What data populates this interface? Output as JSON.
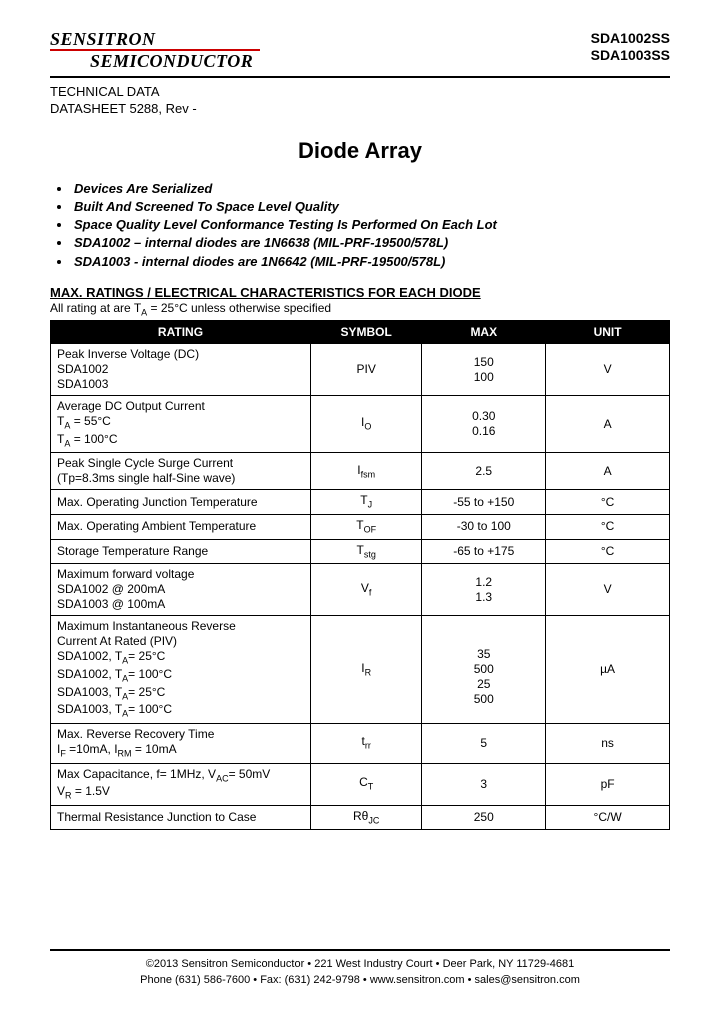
{
  "header": {
    "logo_top": "SENSITRON",
    "logo_bottom": "SEMICONDUCTOR",
    "part1": "SDA1002SS",
    "part2": "SDA1003SS",
    "red_line_color": "#cc0000"
  },
  "tech_data": {
    "line1": "TECHNICAL DATA",
    "line2": "DATASHEET 5288, Rev -"
  },
  "title": "Diode Array",
  "bullets": [
    {
      "text": "Devices Are Serialized",
      "style": "bold-italic"
    },
    {
      "text": "Built And Screened To Space Level Quality",
      "style": "bold-italic"
    },
    {
      "text": "Space Quality Level Conformance Testing Is Performed On Each Lot",
      "style": "bold-italic"
    },
    {
      "text": "SDA1002 – internal diodes are 1N6638 (MIL-PRF-19500/578L)",
      "style": "bold-italic"
    },
    {
      "text": "SDA1003 -  internal diodes are 1N6642 (MIL-PRF-19500/578L)",
      "style": "bold-italic"
    }
  ],
  "ratings_section": {
    "heading": "MAX. RATINGS / ELECTRICAL CHARACTERISTICS FOR EACH DIODE",
    "subheading_pre": "All rating at are T",
    "subheading_sub": "A",
    "subheading_post": " = 25°C unless otherwise specified"
  },
  "table": {
    "columns": [
      "RATING",
      "SYMBOL",
      "MAX",
      "UNIT"
    ],
    "col_widths": [
      "42%",
      "18%",
      "20%",
      "20%"
    ],
    "header_bg": "#000000",
    "header_fg": "#ffffff",
    "rows": [
      {
        "rating": "Peak Inverse Voltage (DC)<br>SDA1002<br>SDA1003",
        "symbol": "PIV",
        "max": "150<br>100",
        "unit": "V"
      },
      {
        "rating": "Average DC Output Current<br>T<span class=\"sub\">A</span> = 55°C<br>T<span class=\"sub\">A</span> = 100°C",
        "symbol": "I<span class=\"sub\">O</span>",
        "max": "0.30<br>0.16",
        "unit": "A"
      },
      {
        "rating": "Peak Single Cycle Surge Current<br>(Tp=8.3ms single half-Sine wave)",
        "symbol": "I<span class=\"sub\">fsm</span>",
        "max": "2.5",
        "unit": "A"
      },
      {
        "rating": "Max. Operating Junction Temperature",
        "symbol": "T<span class=\"sub\">J</span>",
        "max": "-55 to +150",
        "unit": "°C"
      },
      {
        "rating": "Max. Operating Ambient Temperature",
        "symbol": "T<span class=\"sub\">OF</span>",
        "max": "-30 to 100",
        "unit": "°C"
      },
      {
        "rating": "Storage Temperature Range",
        "symbol": "T<span class=\"sub\">stg</span>",
        "max": "-65 to +175",
        "unit": "°C"
      },
      {
        "rating": "Maximum forward voltage<br>SDA1002 @ 200mA<br>SDA1003 @ 100mA",
        "symbol": "V<span class=\"sub\">f</span>",
        "max": "1.2<br>1.3",
        "unit": "V"
      },
      {
        "rating": "Maximum Instantaneous Reverse<br>Current At Rated (PIV)<br>SDA1002, T<span class=\"sub\">A</span>= 25°C<br>SDA1002, T<span class=\"sub\">A</span>= 100°C<br>SDA1003, T<span class=\"sub\">A</span>= 25°C<br>SDA1003, T<span class=\"sub\">A</span>= 100°C",
        "symbol": "I<span class=\"sub\">R</span>",
        "max": "<br>35<br>500<br>25<br>500",
        "unit": "µA"
      },
      {
        "rating": "Max. Reverse Recovery Time<br>I<span class=\"sub\">F</span> =10mA, I<span class=\"sub\">RM</span> = 10mA",
        "symbol": "t<span class=\"sub\">rr</span>",
        "max": "5",
        "unit": "ns"
      },
      {
        "rating": "Max Capacitance, f= 1MHz, V<span class=\"sub\">AC</span>= 50mV<br>V<span class=\"sub\">R</span> = 1.5V",
        "symbol": "C<span class=\"sub\">T</span>",
        "max": "3",
        "unit": "pF"
      },
      {
        "rating": "Thermal Resistance Junction to Case",
        "symbol": "Rθ<span class=\"sub\">JC</span>",
        "max": "250",
        "unit": "°C/W"
      }
    ]
  },
  "footer": {
    "line1": "©2013 Sensitron Semiconductor • 221 West Industry Court • Deer Park, NY 11729-4681",
    "line2": "Phone (631) 586-7600 • Fax: (631) 242-9798 • www.sensitron.com • sales@sensitron.com"
  }
}
